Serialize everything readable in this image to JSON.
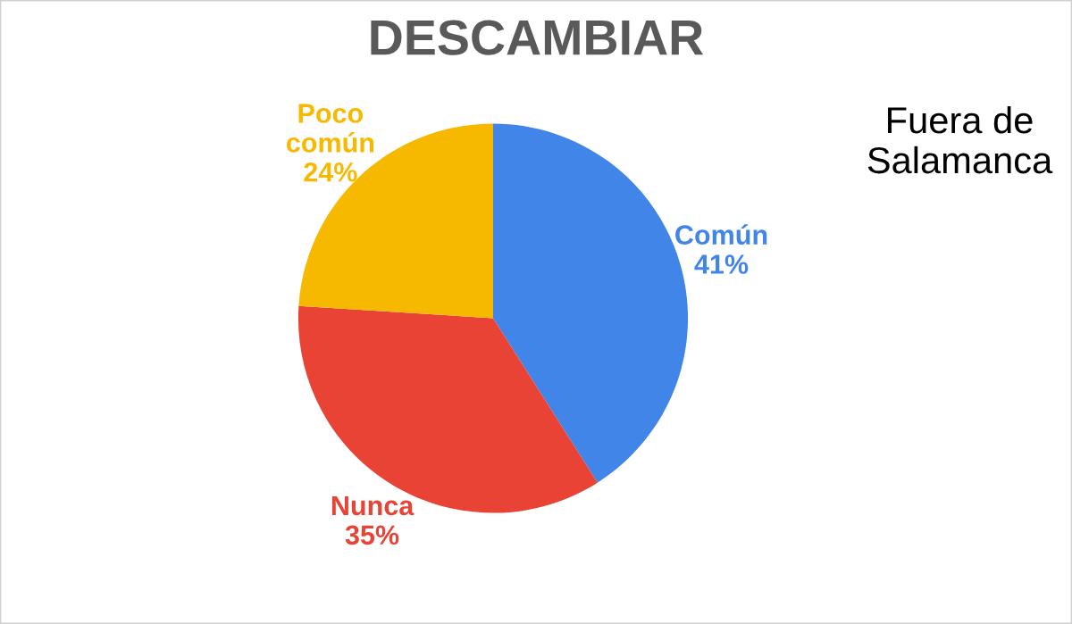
{
  "chart_data": {
    "type": "pie",
    "title": "DESCAMBIAR",
    "categories": [
      "Común",
      "Nunca",
      "Poco común"
    ],
    "values": [
      41,
      35,
      24
    ],
    "value_labels": [
      "41%",
      "35%",
      "24%"
    ],
    "colors": [
      "#4285e8",
      "#e84335",
      "#f7b900"
    ],
    "annotations": [
      "Fuera de\nSalamanca"
    ]
  }
}
